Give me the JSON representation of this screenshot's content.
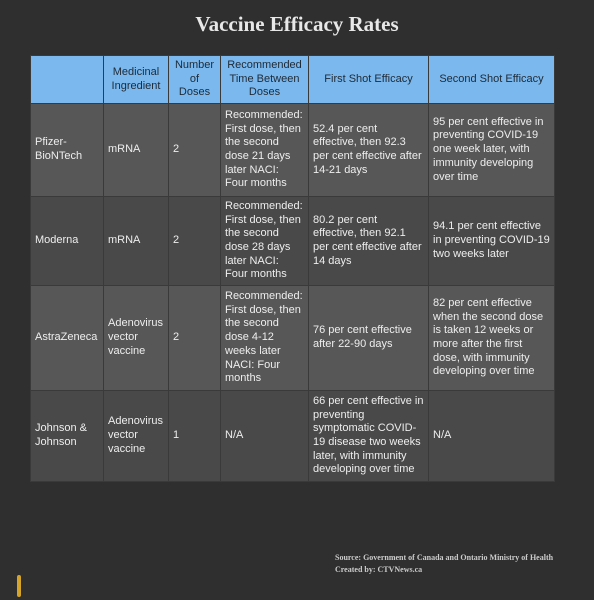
{
  "title": "Vaccine Efficacy Rates",
  "table": {
    "headers": [
      "",
      "Medicinal Ingredient",
      "Number of Doses",
      "Recommended Time Between Doses",
      "First Shot Efficacy",
      "Second Shot Efficacy"
    ],
    "rows": [
      [
        "Pfizer-BioNTech",
        "mRNA",
        "2",
        "Recommended: First dose, then the second dose 21 days later NACI: Four months",
        "52.4 per cent effective, then 92.3 per cent effective after 14-21 days",
        "95 per cent effective in preventing COVID-19 one week later, with immunity developing over time"
      ],
      [
        "Moderna",
        "mRNA",
        "2",
        "Recommended: First dose, then the second dose 28 days later NACI: Four months",
        "80.2 per cent effective, then 92.1 per cent effective after 14 days",
        "94.1 per cent effective in preventing COVID-19 two weeks later"
      ],
      [
        "AstraZeneca",
        "Adenovirus vector vaccine",
        "2",
        "Recommended: First dose, then the second dose 4-12 weeks later NACI: Four months",
        "76 per cent effective after 22-90 days",
        "82 per cent effective when the second dose is taken 12 weeks or more after the first dose, with immunity developing over time"
      ],
      [
        "Johnson & Johnson",
        "Adenovirus vector vaccine",
        "1",
        "N/A",
        "66 per cent effective in preventing symptomatic COVID-19 disease two weeks later, with immunity developing over time",
        "N/A"
      ]
    ]
  },
  "source": "Source: Government of Canada and Ontario Ministry of Health",
  "credit": "Created by: CTVNews.ca"
}
